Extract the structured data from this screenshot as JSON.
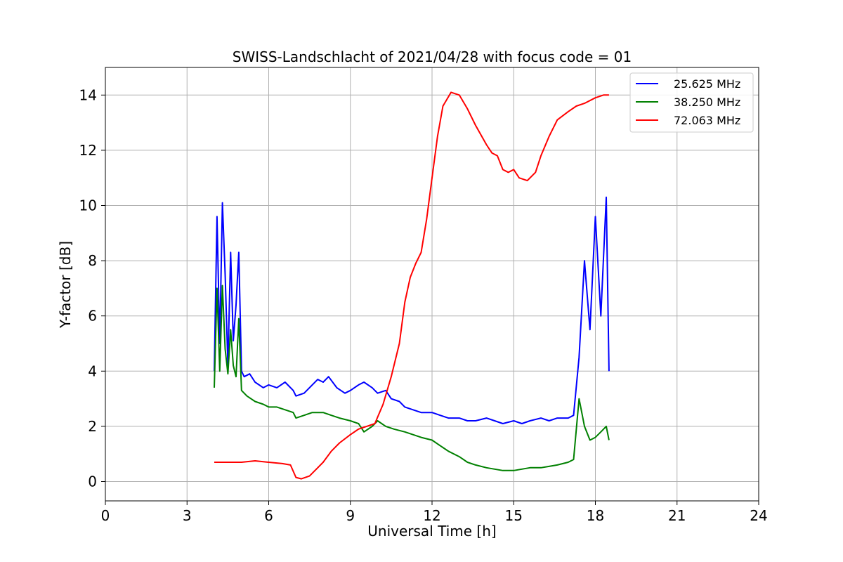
{
  "chart_data": {
    "type": "line",
    "title": "SWISS-Landschlacht of 2021/04/28 with focus code = 01",
    "xlabel": "Universal Time [h]",
    "ylabel": "Y-factor [dB]",
    "xlim": [
      0,
      24
    ],
    "ylim": [
      -0.7,
      15
    ],
    "xticks": [
      0,
      3,
      6,
      9,
      12,
      15,
      18,
      21,
      24
    ],
    "yticks": [
      0,
      2,
      4,
      6,
      8,
      10,
      12,
      14
    ],
    "grid": true,
    "legend_position": "top-right",
    "series": [
      {
        "name": "25.625 MHz",
        "color": "#0000ff",
        "x": [
          4.0,
          4.1,
          4.2,
          4.3,
          4.4,
          4.5,
          4.6,
          4.7,
          4.8,
          4.9,
          5.0,
          5.1,
          5.3,
          5.5,
          5.8,
          6.0,
          6.3,
          6.6,
          6.9,
          7.0,
          7.3,
          7.6,
          7.8,
          8.0,
          8.2,
          8.5,
          8.8,
          9.0,
          9.3,
          9.5,
          9.8,
          10.0,
          10.3,
          10.5,
          10.8,
          11.0,
          11.3,
          11.6,
          12.0,
          12.3,
          12.6,
          13.0,
          13.3,
          13.6,
          14.0,
          14.3,
          14.6,
          15.0,
          15.3,
          15.6,
          16.0,
          16.3,
          16.6,
          17.0,
          17.2,
          17.4,
          17.6,
          17.8,
          18.0,
          18.2,
          18.4,
          18.5
        ],
        "y": [
          4.0,
          9.6,
          5.0,
          10.1,
          7.5,
          4.2,
          8.3,
          5.1,
          6.4,
          8.3,
          4.0,
          3.8,
          3.9,
          3.6,
          3.4,
          3.5,
          3.4,
          3.6,
          3.3,
          3.1,
          3.2,
          3.5,
          3.7,
          3.6,
          3.8,
          3.4,
          3.2,
          3.3,
          3.5,
          3.6,
          3.4,
          3.2,
          3.3,
          3.0,
          2.9,
          2.7,
          2.6,
          2.5,
          2.5,
          2.4,
          2.3,
          2.3,
          2.2,
          2.2,
          2.3,
          2.2,
          2.1,
          2.2,
          2.1,
          2.2,
          2.3,
          2.2,
          2.3,
          2.3,
          2.4,
          4.5,
          8.0,
          5.5,
          9.6,
          6.0,
          10.3,
          4.0
        ]
      },
      {
        "name": "38.250 MHz",
        "color": "#008000",
        "x": [
          4.0,
          4.1,
          4.2,
          4.3,
          4.4,
          4.5,
          4.6,
          4.7,
          4.8,
          4.9,
          5.0,
          5.2,
          5.5,
          5.8,
          6.0,
          6.3,
          6.6,
          6.9,
          7.0,
          7.3,
          7.6,
          8.0,
          8.3,
          8.6,
          9.0,
          9.3,
          9.5,
          9.8,
          10.0,
          10.3,
          10.6,
          11.0,
          11.3,
          11.6,
          12.0,
          12.3,
          12.6,
          13.0,
          13.3,
          13.6,
          14.0,
          14.3,
          14.6,
          15.0,
          15.3,
          15.6,
          16.0,
          16.3,
          16.6,
          17.0,
          17.2,
          17.4,
          17.6,
          17.8,
          18.0,
          18.2,
          18.4,
          18.5
        ],
        "y": [
          3.4,
          7.0,
          4.0,
          7.1,
          4.8,
          3.9,
          5.5,
          4.2,
          3.8,
          5.9,
          3.3,
          3.1,
          2.9,
          2.8,
          2.7,
          2.7,
          2.6,
          2.5,
          2.3,
          2.4,
          2.5,
          2.5,
          2.4,
          2.3,
          2.2,
          2.1,
          1.8,
          2.0,
          2.2,
          2.0,
          1.9,
          1.8,
          1.7,
          1.6,
          1.5,
          1.3,
          1.1,
          0.9,
          0.7,
          0.6,
          0.5,
          0.45,
          0.4,
          0.4,
          0.45,
          0.5,
          0.5,
          0.55,
          0.6,
          0.7,
          0.8,
          3.0,
          2.0,
          1.5,
          1.6,
          1.8,
          2.0,
          1.5
        ]
      },
      {
        "name": "72.063 MHz",
        "color": "#ff0000",
        "x": [
          4.0,
          4.5,
          5.0,
          5.5,
          6.0,
          6.5,
          6.8,
          7.0,
          7.2,
          7.5,
          7.8,
          8.0,
          8.3,
          8.6,
          9.0,
          9.3,
          9.6,
          9.9,
          10.2,
          10.5,
          10.8,
          11.0,
          11.2,
          11.4,
          11.6,
          11.8,
          12.0,
          12.2,
          12.4,
          12.7,
          13.0,
          13.3,
          13.6,
          14.0,
          14.2,
          14.4,
          14.6,
          14.8,
          15.0,
          15.2,
          15.5,
          15.8,
          16.0,
          16.3,
          16.6,
          17.0,
          17.3,
          17.6,
          18.0,
          18.3,
          18.5
        ],
        "y": [
          0.7,
          0.7,
          0.7,
          0.75,
          0.7,
          0.65,
          0.6,
          0.15,
          0.1,
          0.2,
          0.5,
          0.7,
          1.1,
          1.4,
          1.7,
          1.9,
          2.0,
          2.1,
          2.8,
          3.8,
          5.0,
          6.5,
          7.4,
          7.9,
          8.3,
          9.5,
          11.0,
          12.5,
          13.6,
          14.1,
          14.0,
          13.5,
          12.9,
          12.2,
          11.9,
          11.8,
          11.3,
          11.2,
          11.3,
          11.0,
          10.9,
          11.2,
          11.8,
          12.5,
          13.1,
          13.4,
          13.6,
          13.7,
          13.9,
          14.0,
          14.0
        ]
      }
    ]
  }
}
